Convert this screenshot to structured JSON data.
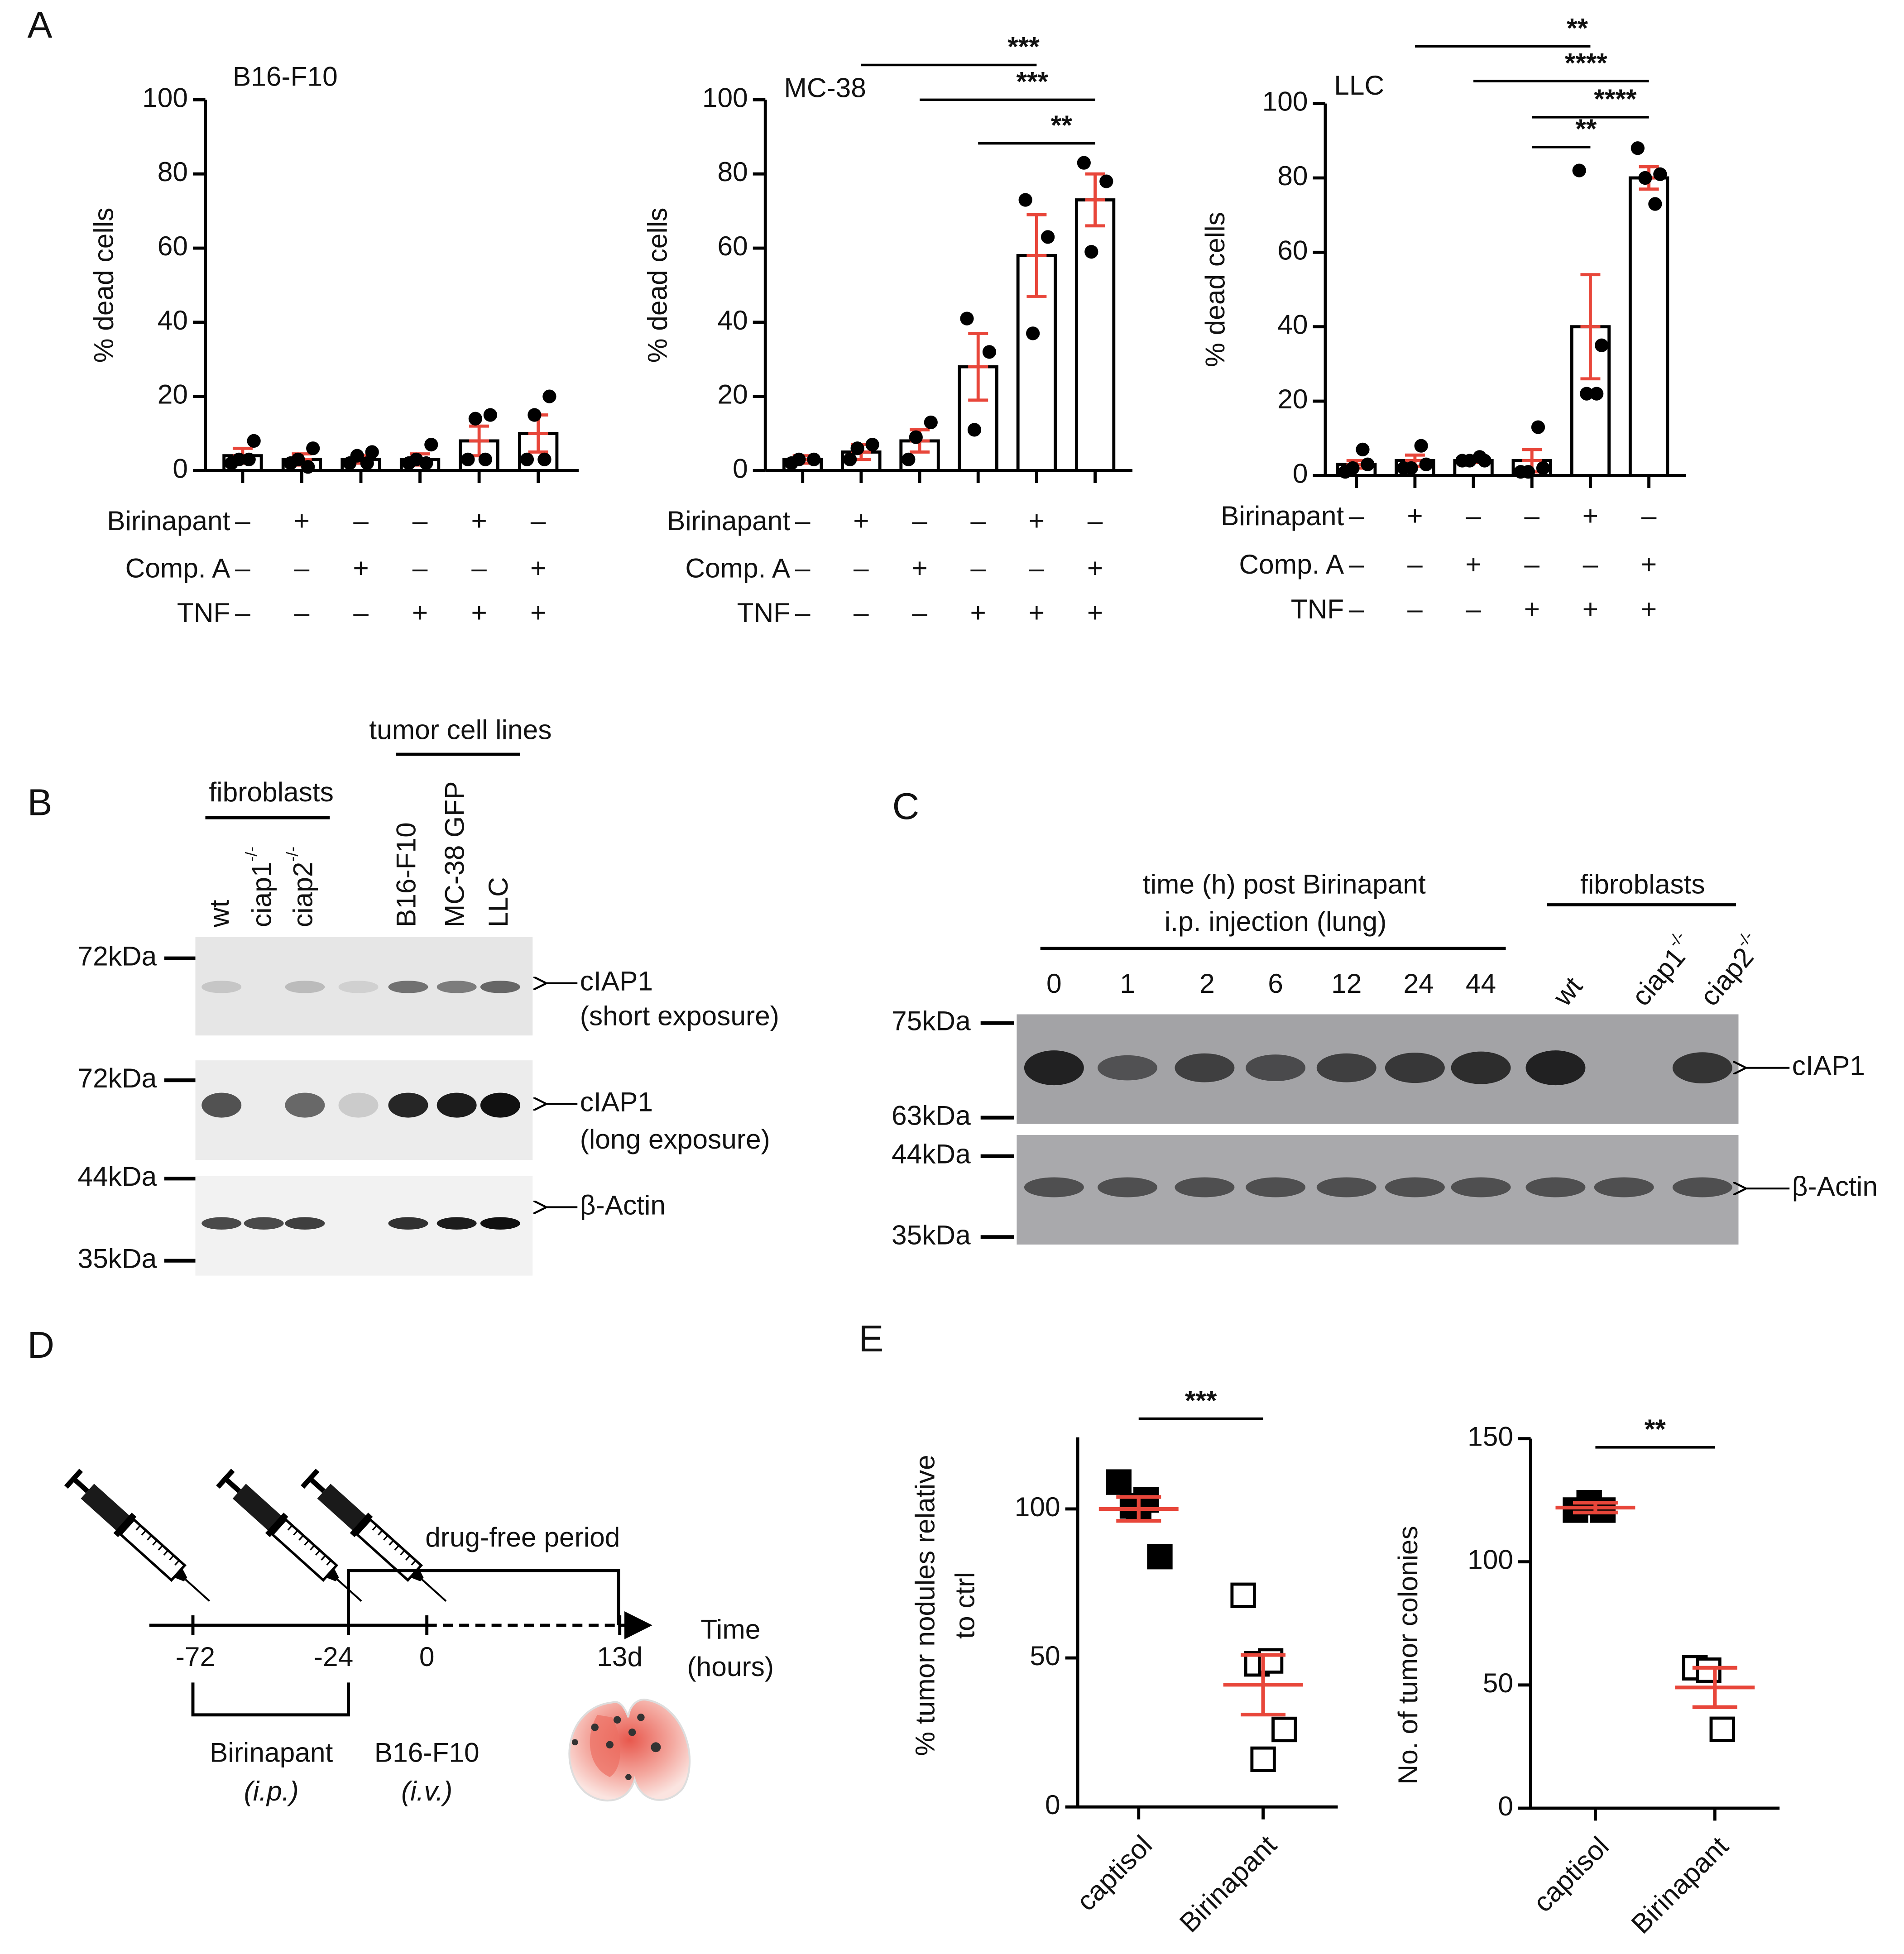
{
  "panel_labels": [
    "A",
    "B",
    "C",
    "D",
    "E"
  ],
  "chart_data": [
    {
      "type": "bar",
      "title": "B16-F10",
      "ylabel": "% dead cells",
      "ylim": [
        0,
        100
      ],
      "yticks": [
        0,
        20,
        40,
        60,
        80,
        100
      ],
      "color": "#e8463a",
      "values": [
        4,
        3,
        3,
        3,
        8,
        10
      ],
      "errors": [
        2,
        1.5,
        1,
        1.5,
        4,
        5
      ],
      "points": [
        [
          2,
          8,
          3,
          3
        ],
        [
          2,
          6,
          3,
          1
        ],
        [
          2,
          5,
          4,
          2
        ],
        [
          2,
          7,
          3,
          2
        ],
        [
          3,
          15,
          14,
          3
        ],
        [
          3,
          20,
          15,
          3
        ]
      ],
      "conditions": [
        {
          "name": "Birinapant",
          "signs": [
            "–",
            "+",
            "–",
            "–",
            "+",
            "–"
          ]
        },
        {
          "name": "Comp. A",
          "signs": [
            "–",
            "–",
            "+",
            "–",
            "–",
            "+"
          ]
        },
        {
          "name": "TNF",
          "signs": [
            "–",
            "–",
            "–",
            "+",
            "+",
            "+"
          ]
        }
      ],
      "significance": []
    },
    {
      "type": "bar",
      "title": "MC-38",
      "ylabel": "% dead cells",
      "ylim": [
        0,
        100
      ],
      "yticks": [
        0,
        20,
        40,
        60,
        80,
        100
      ],
      "color": "#e8463a",
      "values": [
        3,
        5,
        8,
        28,
        58,
        73
      ],
      "errors": [
        1,
        2,
        3,
        9,
        11,
        7
      ],
      "points": [
        [
          2,
          3,
          3
        ],
        [
          3,
          7,
          6
        ],
        [
          3,
          13,
          9
        ],
        [
          41,
          32,
          11
        ],
        [
          73,
          63,
          37
        ],
        [
          83,
          78,
          59
        ]
      ],
      "conditions": [
        {
          "name": "Birinapant",
          "signs": [
            "–",
            "+",
            "–",
            "–",
            "+",
            "–"
          ]
        },
        {
          "name": "Comp. A",
          "signs": [
            "–",
            "–",
            "+",
            "–",
            "–",
            "+"
          ]
        },
        {
          "name": "TNF",
          "signs": [
            "–",
            "–",
            "–",
            "+",
            "+",
            "+"
          ]
        }
      ],
      "significance": [
        {
          "from": 1,
          "to": 4,
          "label": "***"
        },
        {
          "from": 2,
          "to": 5,
          "label": "***"
        },
        {
          "from": 3,
          "to": 5,
          "label": "**"
        }
      ]
    },
    {
      "type": "bar",
      "title": "LLC",
      "ylabel": "% dead cells",
      "ylim": [
        0,
        100
      ],
      "yticks": [
        0,
        20,
        40,
        60,
        80,
        100
      ],
      "color": "#e8463a",
      "values": [
        3,
        4,
        4,
        4,
        40,
        80
      ],
      "errors": [
        1,
        1.5,
        0.5,
        3,
        14,
        3
      ],
      "points": [
        [
          1,
          3,
          2,
          7
        ],
        [
          2,
          3,
          2,
          8
        ],
        [
          4,
          4,
          4,
          5
        ],
        [
          1,
          2,
          1,
          13
        ],
        [
          82,
          35,
          22,
          22
        ],
        [
          88,
          81,
          80,
          73
        ]
      ],
      "conditions": [
        {
          "name": "Birinapant",
          "signs": [
            "–",
            "+",
            "–",
            "–",
            "+",
            "–"
          ]
        },
        {
          "name": "Comp. A",
          "signs": [
            "–",
            "–",
            "+",
            "–",
            "–",
            "+"
          ]
        },
        {
          "name": "TNF",
          "signs": [
            "–",
            "–",
            "–",
            "+",
            "+",
            "+"
          ]
        }
      ],
      "significance": [
        {
          "from": 1,
          "to": 4,
          "label": "**"
        },
        {
          "from": 2,
          "to": 5,
          "label": "****"
        },
        {
          "from": 3,
          "to": 5,
          "label": "****"
        },
        {
          "from": 3,
          "to": 4,
          "label": "**"
        }
      ]
    },
    {
      "type": "dot",
      "ylabel": [
        "% tumor nodules relative",
        "to ctrl"
      ],
      "ylim": [
        0,
        124
      ],
      "yticks": [
        0,
        50,
        100
      ],
      "color": "#e8463a",
      "series": [
        {
          "name": "captisol",
          "filled": true,
          "values": [
            109,
            101,
            103,
            84,
            100
          ]
        },
        {
          "name": "Birinapant",
          "filled": false,
          "values": [
            71,
            48,
            49,
            26,
            16
          ]
        }
      ],
      "means": [
        100,
        41
      ],
      "errors": [
        4,
        10
      ],
      "significance": [
        {
          "from": 0,
          "to": 1,
          "label": "***"
        }
      ]
    },
    {
      "type": "dot",
      "ylabel": [
        "No. of tumor colonies"
      ],
      "ylim": [
        0,
        150
      ],
      "yticks": [
        0,
        50,
        100,
        150
      ],
      "color": "#e8463a",
      "series": [
        {
          "name": "captisol",
          "filled": true,
          "values": [
            121,
            124,
            121
          ]
        },
        {
          "name": "Birinapant",
          "filled": false,
          "values": [
            57,
            56,
            32
          ]
        }
      ],
      "means": [
        122,
        49
      ],
      "errors": [
        2,
        8
      ],
      "significance": [
        {
          "from": 0,
          "to": 1,
          "label": "**"
        }
      ]
    }
  ],
  "blot_b": {
    "group_labels": [
      "fibroblasts",
      "tumor cell lines"
    ],
    "lanes": [
      {
        "text": "wt"
      },
      {
        "text": "ciap1",
        "sup": "-/-"
      },
      {
        "text": "ciap2",
        "sup": "-/-"
      },
      {
        "text": "B16-F10"
      },
      {
        "text": "MC-38 GFP"
      },
      {
        "text": "LLC"
      }
    ],
    "markers": [
      "72kDa",
      "72kDa",
      "44kDa",
      "35kDa"
    ],
    "bands": [
      {
        "name": "cIAP1",
        "note": "(short exposure)"
      },
      {
        "name": "cIAP1",
        "note": "(long exposure)"
      },
      {
        "name": "β-Actin"
      }
    ]
  },
  "blot_c": {
    "header": [
      "time (h) post Birinapant",
      "i.p. injection (lung)"
    ],
    "group_label": "fibroblasts",
    "lanes": [
      {
        "text": "0"
      },
      {
        "text": "1"
      },
      {
        "text": "2"
      },
      {
        "text": "6"
      },
      {
        "text": "12"
      },
      {
        "text": "24"
      },
      {
        "text": "44"
      },
      {
        "text": "wt"
      },
      {
        "text": "ciap1",
        "sup": "-/-"
      },
      {
        "text": "ciap2",
        "sup": "-/-"
      }
    ],
    "markers": [
      "75kDa",
      "63kDa",
      "44kDa",
      "35kDa"
    ],
    "bands": [
      "cIAP1",
      "β-Actin"
    ]
  },
  "diagram": {
    "ticks": [
      "-72",
      "-24",
      "0",
      "13d"
    ],
    "axis_label": [
      "Time",
      "(hours)"
    ],
    "period": "drug-free period",
    "treatments": [
      {
        "name": "Birinapant",
        "route": "(i.p.)"
      },
      {
        "name": "B16-F10",
        "route": "(i.v.)"
      }
    ]
  }
}
